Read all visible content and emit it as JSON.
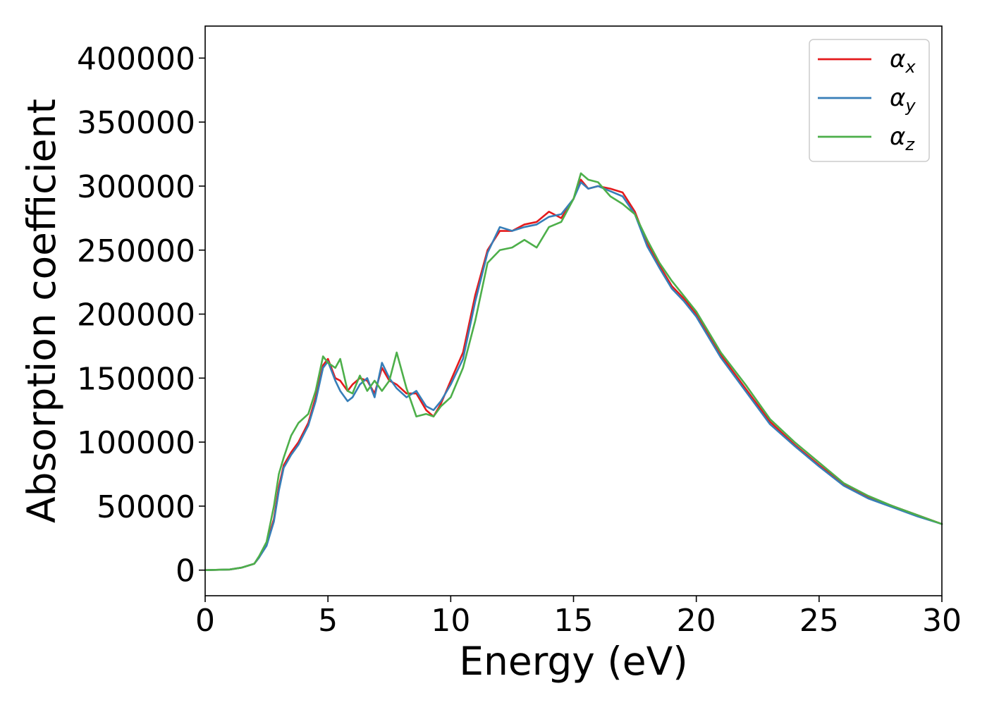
{
  "chart_data": {
    "type": "line",
    "title": "",
    "xlabel": "Energy (eV)",
    "ylabel": "Absorption coefficient",
    "xlim": [
      0,
      30
    ],
    "ylim": [
      -20000,
      425000
    ],
    "xticks": [
      "0",
      "5",
      "10",
      "15",
      "20",
      "25",
      "30"
    ],
    "yticks": [
      "0",
      "50000",
      "100000",
      "150000",
      "200000",
      "250000",
      "300000",
      "350000",
      "400000"
    ],
    "grid": false,
    "legend": {
      "position": "top-right",
      "entries": [
        {
          "base": "α",
          "sub": "x"
        },
        {
          "base": "α",
          "sub": "y"
        },
        {
          "base": "α",
          "sub": "z"
        }
      ]
    },
    "series": [
      {
        "name": "αx",
        "color": "#e41a1c",
        "x": [
          0,
          1,
          1.5,
          2,
          2.2,
          2.5,
          2.8,
          3,
          3.2,
          3.5,
          3.8,
          4.2,
          4.5,
          4.8,
          5.0,
          5.3,
          5.5,
          5.8,
          6.0,
          6.3,
          6.6,
          6.9,
          7.2,
          7.5,
          7.8,
          8.2,
          8.6,
          9.0,
          9.3,
          9.6,
          10.0,
          10.5,
          11.0,
          11.5,
          12.0,
          12.5,
          13.0,
          13.5,
          14.0,
          14.5,
          15.0,
          15.3,
          15.6,
          16.0,
          16.5,
          17.0,
          17.5,
          18.0,
          18.5,
          19.0,
          19.5,
          20.0,
          21.0,
          22.0,
          23.0,
          24.0,
          25.0,
          26.0,
          27.0,
          28.0,
          29.0,
          30.0
        ],
        "values": [
          0,
          500,
          2000,
          5000,
          10000,
          20000,
          40000,
          65000,
          82000,
          92000,
          100000,
          115000,
          135000,
          160000,
          165000,
          150000,
          148000,
          140000,
          145000,
          150000,
          148000,
          138000,
          158000,
          148000,
          145000,
          138000,
          138000,
          125000,
          120000,
          130000,
          148000,
          170000,
          215000,
          250000,
          265000,
          265000,
          270000,
          272000,
          280000,
          275000,
          290000,
          305000,
          298000,
          300000,
          298000,
          295000,
          280000,
          255000,
          238000,
          222000,
          212000,
          200000,
          168000,
          142000,
          116000,
          98000,
          82000,
          67000,
          57000,
          50000,
          43000,
          36000
        ]
      },
      {
        "name": "αy",
        "color": "#377eb8",
        "x": [
          0,
          1,
          1.5,
          2,
          2.2,
          2.5,
          2.8,
          3,
          3.2,
          3.5,
          3.8,
          4.2,
          4.5,
          4.8,
          5.0,
          5.3,
          5.5,
          5.8,
          6.0,
          6.3,
          6.6,
          6.9,
          7.2,
          7.5,
          7.8,
          8.2,
          8.6,
          9.0,
          9.3,
          9.6,
          10.0,
          10.5,
          11.0,
          11.5,
          12.0,
          12.5,
          13.0,
          13.5,
          14.0,
          14.5,
          15.0,
          15.3,
          15.6,
          16.0,
          16.5,
          17.0,
          17.5,
          18.0,
          18.5,
          19.0,
          19.5,
          20.0,
          21.0,
          22.0,
          23.0,
          24.0,
          25.0,
          26.0,
          27.0,
          28.0,
          29.0,
          30.0
        ],
        "values": [
          0,
          500,
          2000,
          5000,
          10000,
          19000,
          38000,
          62000,
          80000,
          90000,
          98000,
          113000,
          132000,
          158000,
          163000,
          148000,
          140000,
          132000,
          135000,
          145000,
          150000,
          135000,
          162000,
          150000,
          142000,
          135000,
          140000,
          128000,
          125000,
          132000,
          145000,
          165000,
          210000,
          248000,
          268000,
          265000,
          268000,
          270000,
          276000,
          278000,
          290000,
          303000,
          298000,
          300000,
          296000,
          292000,
          278000,
          253000,
          236000,
          220000,
          210000,
          198000,
          166000,
          140000,
          114000,
          97000,
          81000,
          66000,
          56000,
          49000,
          42000,
          36000
        ]
      },
      {
        "name": "αz",
        "color": "#4daf4a",
        "x": [
          0,
          1,
          1.5,
          2,
          2.2,
          2.5,
          2.8,
          3,
          3.2,
          3.5,
          3.8,
          4.2,
          4.5,
          4.8,
          5.0,
          5.3,
          5.5,
          5.8,
          6.0,
          6.3,
          6.6,
          6.9,
          7.2,
          7.5,
          7.8,
          8.2,
          8.6,
          9.0,
          9.3,
          9.6,
          10.0,
          10.5,
          11.0,
          11.5,
          12.0,
          12.5,
          13.0,
          13.5,
          14.0,
          14.5,
          15.0,
          15.3,
          15.6,
          16.0,
          16.5,
          17.0,
          17.5,
          18.0,
          18.5,
          19.0,
          19.5,
          20.0,
          21.0,
          22.0,
          23.0,
          24.0,
          25.0,
          26.0,
          27.0,
          28.0,
          29.0,
          30.0
        ],
        "values": [
          0,
          500,
          2000,
          5000,
          11000,
          22000,
          50000,
          75000,
          88000,
          105000,
          115000,
          122000,
          140000,
          167000,
          162000,
          158000,
          165000,
          140000,
          138000,
          152000,
          140000,
          148000,
          140000,
          148000,
          170000,
          142000,
          120000,
          122000,
          120000,
          128000,
          135000,
          158000,
          195000,
          240000,
          250000,
          252000,
          258000,
          252000,
          268000,
          272000,
          290000,
          310000,
          305000,
          303000,
          292000,
          286000,
          278000,
          258000,
          240000,
          226000,
          214000,
          202000,
          170000,
          145000,
          118000,
          100000,
          84000,
          68000,
          58000,
          50000,
          43000,
          36000
        ]
      }
    ]
  }
}
